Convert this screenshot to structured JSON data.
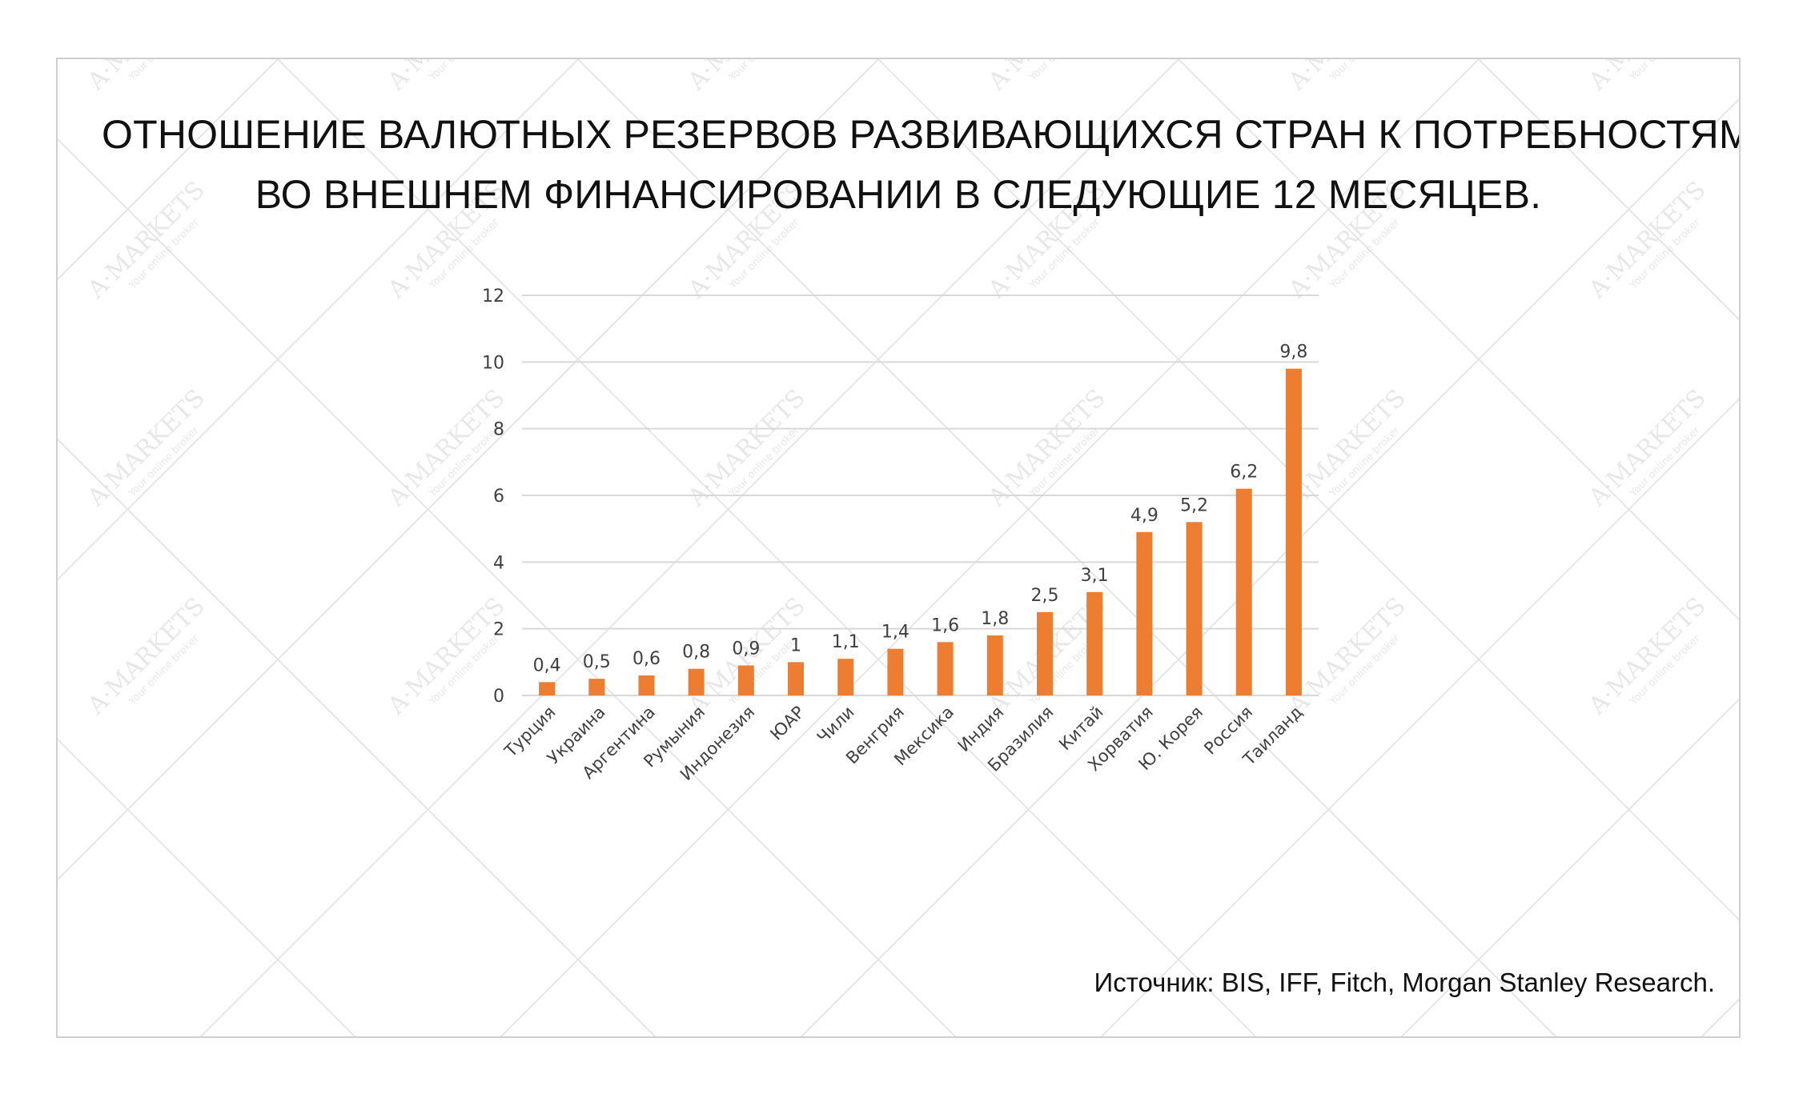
{
  "title": {
    "line1": "ОТНОШЕНИЕ ВАЛЮТНЫХ РЕЗЕРВОВ РАЗВИВАЮЩИХСЯ СТРАН К ПОТРЕБНОСТЯМ",
    "line2": "ВО ВНЕШНЕМ ФИНАНСИРОВАНИИ В СЛЕДУЮЩИЕ 12 МЕСЯЦЕВ."
  },
  "source": "Источник: BIS, IFF, Fitch, Morgan Stanley Research.",
  "watermark": {
    "brand": "A·MARKETS",
    "tagline": "Your online broker"
  },
  "colors": {
    "bar": "#ED7D31",
    "grid": "#D9D9D9",
    "text": "#404040"
  },
  "chart_data": {
    "type": "bar",
    "categories": [
      "Турция",
      "Украина",
      "Аргентина",
      "Румыния",
      "Индонезия",
      "ЮАР",
      "Чили",
      "Венгрия",
      "Мексика",
      "Индия",
      "Бразилия",
      "Китай",
      "Хорватия",
      "Ю. Корея",
      "Россия",
      "Таиланд"
    ],
    "values": [
      0.4,
      0.5,
      0.6,
      0.8,
      0.9,
      1,
      1.1,
      1.4,
      1.6,
      1.8,
      2.5,
      3.1,
      4.9,
      5.2,
      6.2,
      9.8
    ],
    "data_labels": [
      "0,4",
      "0,5",
      "0,6",
      "0,8",
      "0,9",
      "1",
      "1,1",
      "1,4",
      "1,6",
      "1,8",
      "2,5",
      "3,1",
      "4,9",
      "5,2",
      "6,2",
      "9,8"
    ],
    "y_ticks": [
      0,
      2,
      4,
      6,
      8,
      10,
      12
    ],
    "ylim": [
      0,
      12
    ],
    "grid": true,
    "legend": "none",
    "xlabel": "",
    "ylabel": ""
  }
}
